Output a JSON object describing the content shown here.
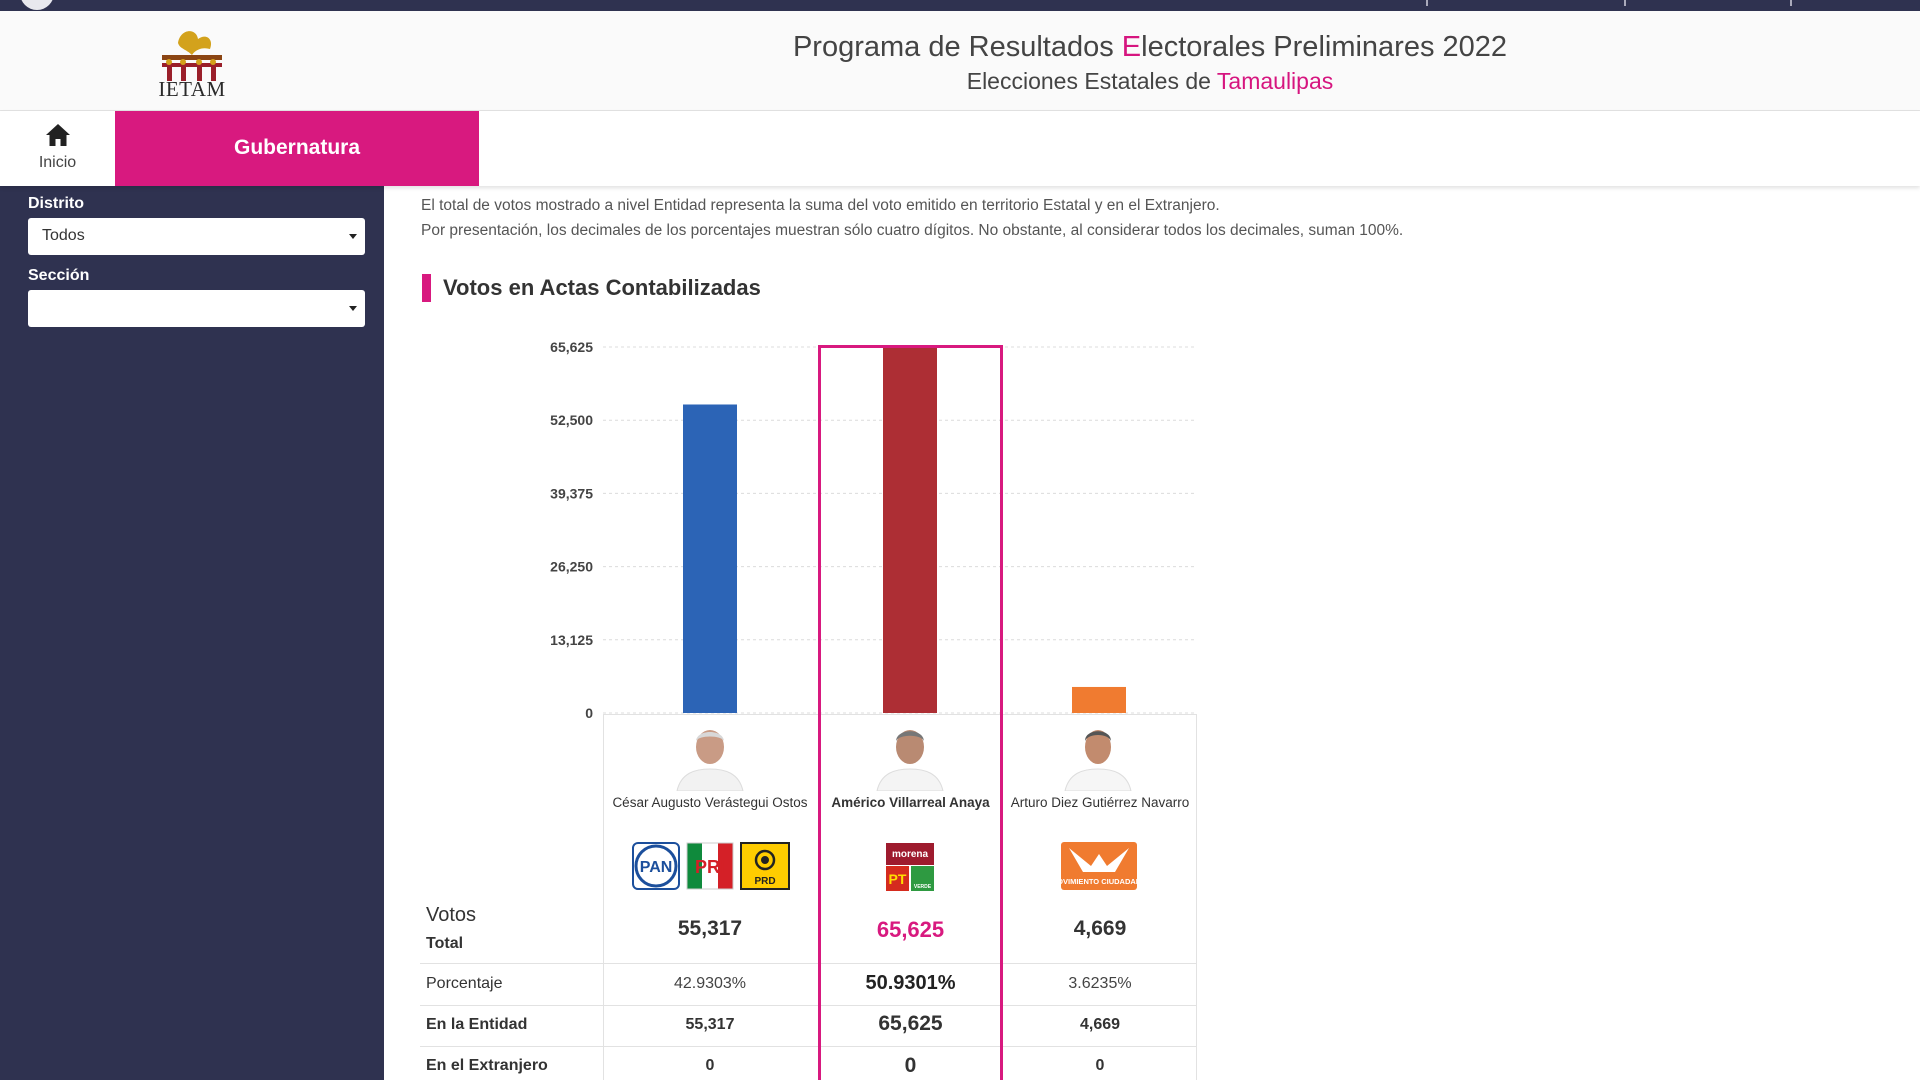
{
  "header": {
    "logo_text": "IETAM",
    "title_parts": [
      "Programa de Resultados ",
      "E",
      "lectorales Preliminares 2022"
    ],
    "subtitle_prefix": "Elecciones Estatales de ",
    "subtitle_state": "Tamaulipas"
  },
  "nav": {
    "home_label": "Inicio",
    "active_tab": "Gubernatura"
  },
  "sidebar": {
    "distrito_label": "Distrito",
    "distrito_value": "Todos",
    "seccion_label": "Sección",
    "seccion_value": ""
  },
  "notes": [
    "El total de votos mostrado a nivel Entidad representa la suma del voto emitido en territorio Estatal y en el Extranjero.",
    "Por presentación, los decimales de los porcentajes muestran sólo cuatro dígitos. No obstante, al considerar todos los decimales, suman 100%."
  ],
  "section_title": "Votos en Actas Contabilizadas",
  "chart_data": {
    "type": "bar",
    "categories": [
      "César Augusto Verástegui Ostos",
      "Américo Villarreal Anaya",
      "Arturo Diez Gutiérrez Navarro"
    ],
    "values": [
      55317,
      65625,
      4669
    ],
    "ylim": [
      0,
      65625
    ],
    "yticks": [
      "0",
      "13,125",
      "26,250",
      "39,375",
      "52,500",
      "65,625"
    ],
    "ytick_values": [
      0,
      13125,
      26250,
      39375,
      52500,
      65625
    ],
    "colors": [
      "#2c64b6",
      "#ad2e34",
      "#f07b30"
    ],
    "grid": true
  },
  "candidates": [
    {
      "name": "César Augusto Verástegui Ostos",
      "parties": [
        "PAN",
        "PRI",
        "PRD"
      ],
      "total": "55,317",
      "porcentaje": "42.9303%",
      "entidad": "55,317",
      "extranjero": "0"
    },
    {
      "name": "Américo Villarreal Anaya",
      "parties": [
        "morena",
        "PT",
        "VERDE"
      ],
      "total": "65,625",
      "porcentaje": "50.9301%",
      "entidad": "65,625",
      "extranjero": "0"
    },
    {
      "name": "Arturo Diez Gutiérrez Navarro",
      "parties": [
        "MOVIMIENTO CIUDADANO"
      ],
      "total": "4,669",
      "porcentaje": "3.6235%",
      "entidad": "4,669",
      "extranjero": "0"
    }
  ],
  "table": {
    "votos_label": "Votos",
    "total_label": "Total",
    "porcentaje_label": "Porcentaje",
    "entidad_label": "En la Entidad",
    "extranjero_label": "En el Extranjero"
  },
  "colors": {
    "accent": "#d8197f",
    "sidebar": "#2f3250"
  }
}
